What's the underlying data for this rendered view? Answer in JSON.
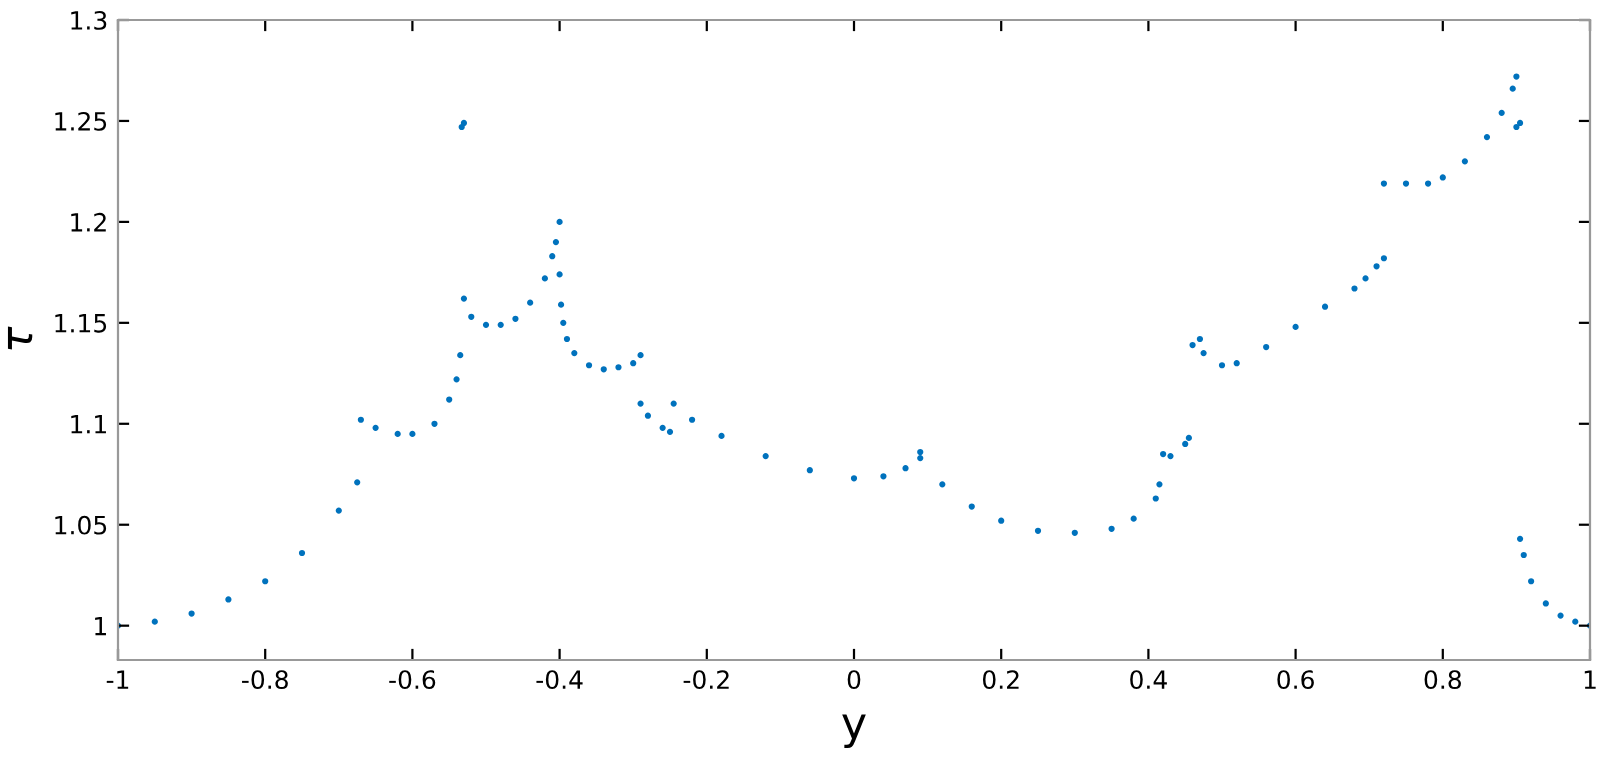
{
  "chart_data": {
    "type": "scatter",
    "xlabel": "y",
    "ylabel": "τ",
    "marker": "circle",
    "grid": false,
    "xlim": [
      -1,
      1
    ],
    "ylim": [
      0.983,
      1.3
    ],
    "xticks": [
      -1,
      -0.8,
      -0.6,
      -0.4,
      -0.2,
      0,
      0.2,
      0.4,
      0.6,
      0.8,
      1
    ],
    "yticks": [
      1,
      1.05,
      1.1,
      1.15,
      1.2,
      1.25,
      1.3
    ],
    "series": [
      {
        "color": "#0072bd",
        "x": [
          -1,
          -0.95,
          -0.9,
          -0.85,
          -0.8,
          -0.75,
          -0.7,
          -0.675,
          -0.67,
          -0.65,
          -0.62,
          -0.6,
          -0.57,
          -0.55,
          -0.54,
          -0.535,
          -0.533,
          -0.53,
          -0.53,
          -0.52,
          -0.5,
          -0.48,
          -0.46,
          -0.44,
          -0.42,
          -0.41,
          -0.405,
          -0.4,
          -0.4,
          -0.398,
          -0.395,
          -0.39,
          -0.38,
          -0.36,
          -0.34,
          -0.32,
          -0.3,
          -0.29,
          -0.29,
          -0.28,
          -0.26,
          -0.25,
          -0.245,
          -0.22,
          -0.18,
          -0.12,
          -0.06,
          0,
          0.04,
          0.07,
          0.09,
          0.09,
          0.12,
          0.16,
          0.2,
          0.25,
          0.3,
          0.35,
          0.38,
          0.41,
          0.415,
          0.42,
          0.43,
          0.45,
          0.455,
          0.46,
          0.47,
          0.475,
          0.5,
          0.52,
          0.56,
          0.6,
          0.64,
          0.68,
          0.695,
          0.71,
          0.72,
          0.72,
          0.75,
          0.78,
          0.8,
          0.83,
          0.86,
          0.88,
          0.895,
          0.9,
          0.9,
          0.905,
          0.905,
          0.91,
          0.92,
          0.94,
          0.96,
          0.98,
          1
        ],
        "values": [
          1.0,
          1.002,
          1.006,
          1.013,
          1.022,
          1.036,
          1.057,
          1.071,
          1.102,
          1.098,
          1.095,
          1.095,
          1.1,
          1.112,
          1.122,
          1.134,
          1.247,
          1.249,
          1.162,
          1.153,
          1.149,
          1.149,
          1.152,
          1.16,
          1.172,
          1.183,
          1.19,
          1.2,
          1.174,
          1.159,
          1.15,
          1.142,
          1.135,
          1.129,
          1.127,
          1.128,
          1.13,
          1.134,
          1.11,
          1.104,
          1.098,
          1.096,
          1.11,
          1.102,
          1.094,
          1.084,
          1.077,
          1.073,
          1.074,
          1.078,
          1.086,
          1.083,
          1.07,
          1.059,
          1.052,
          1.047,
          1.046,
          1.048,
          1.053,
          1.063,
          1.07,
          1.085,
          1.084,
          1.09,
          1.093,
          1.139,
          1.142,
          1.135,
          1.129,
          1.13,
          1.138,
          1.148,
          1.158,
          1.167,
          1.172,
          1.178,
          1.182,
          1.219,
          1.219,
          1.219,
          1.222,
          1.23,
          1.242,
          1.254,
          1.266,
          1.272,
          1.247,
          1.249,
          1.043,
          1.035,
          1.022,
          1.011,
          1.005,
          1.002,
          1.0
        ]
      }
    ]
  }
}
